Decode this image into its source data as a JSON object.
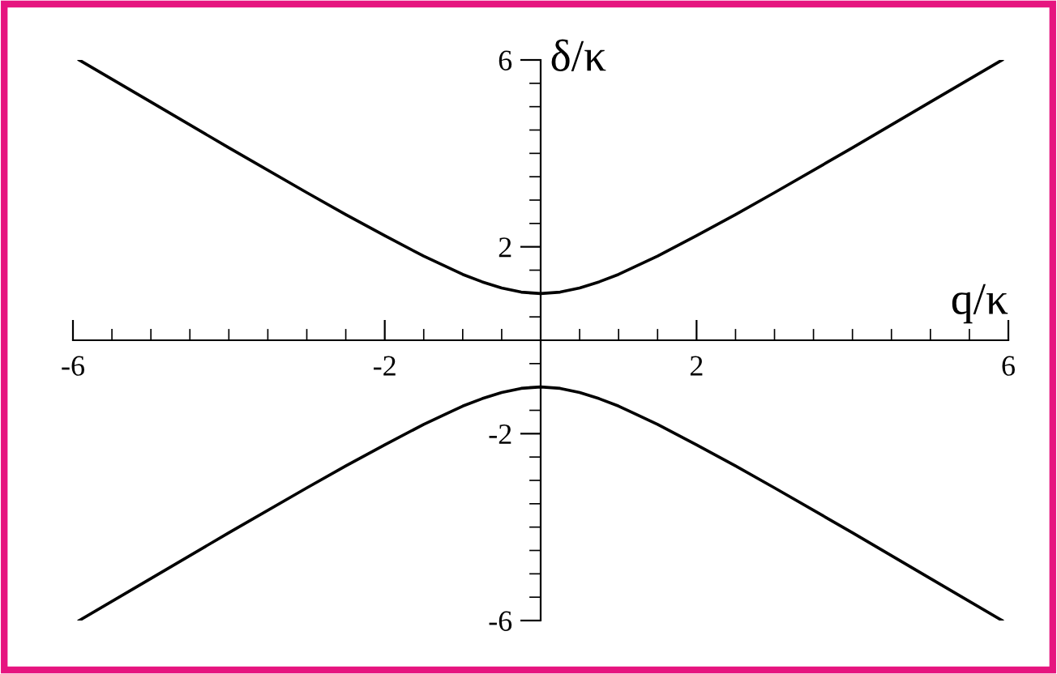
{
  "chart_data": {
    "type": "line",
    "xlabel": "q/κ",
    "ylabel": "δ/κ",
    "x": [
      -5.92,
      -5,
      -4,
      -3,
      -2.5,
      -2,
      -1.5,
      -1,
      -0.75,
      -0.5,
      -0.25,
      0,
      0.25,
      0.5,
      0.75,
      1,
      1.5,
      2,
      2.5,
      3,
      4,
      5,
      5.92
    ],
    "series": [
      {
        "color": "#000000",
        "values": [
          6.0,
          5.1,
          4.12,
          3.16,
          2.69,
          2.24,
          1.8,
          1.41,
          1.25,
          1.12,
          1.03,
          1.0,
          1.03,
          1.12,
          1.25,
          1.41,
          1.8,
          2.24,
          2.69,
          3.16,
          4.12,
          5.1,
          6.0
        ]
      },
      {
        "color": "#000000",
        "values": [
          -6.0,
          -5.1,
          -4.12,
          -3.16,
          -2.69,
          -2.24,
          -1.8,
          -1.41,
          -1.25,
          -1.12,
          -1.03,
          -1.0,
          -1.03,
          -1.12,
          -1.25,
          -1.41,
          -1.8,
          -2.24,
          -2.69,
          -3.16,
          -4.12,
          -5.1,
          -6.0
        ]
      }
    ],
    "xlim": [
      -6,
      6
    ],
    "ylim": [
      -6,
      6
    ],
    "xticks": [
      -6,
      {
        "value": -5.5,
        "label": null
      },
      {
        "value": -5,
        "label": null
      },
      {
        "value": -4.5,
        "label": null
      },
      {
        "value": -4,
        "label": null
      },
      {
        "value": -3.5,
        "label": null
      },
      {
        "value": -3,
        "label": null
      },
      {
        "value": -2.5,
        "label": null
      },
      -2,
      {
        "value": -1.5,
        "label": null
      },
      {
        "value": -1,
        "label": null
      },
      {
        "value": -0.5,
        "label": null
      },
      {
        "value": 0.5,
        "label": null
      },
      {
        "value": 1,
        "label": null
      },
      {
        "value": 1.5,
        "label": null
      },
      2,
      {
        "value": 2.5,
        "label": null
      },
      {
        "value": 3,
        "label": null
      },
      {
        "value": 3.5,
        "label": null
      },
      {
        "value": 4,
        "label": null
      },
      {
        "value": 4.5,
        "label": null
      },
      {
        "value": 5,
        "label": null
      },
      {
        "value": 5.5,
        "label": null
      },
      6
    ],
    "yticks": [
      -6,
      {
        "value": -5.5,
        "label": null
      },
      {
        "value": -5,
        "label": null
      },
      {
        "value": -4.5,
        "label": null
      },
      {
        "value": -4,
        "label": null
      },
      {
        "value": -3.5,
        "label": null
      },
      {
        "value": -3,
        "label": null
      },
      {
        "value": -2.5,
        "label": null
      },
      -2,
      {
        "value": -1.5,
        "label": null
      },
      {
        "value": -1,
        "label": null
      },
      {
        "value": -0.5,
        "label": null
      },
      {
        "value": 0.5,
        "label": null
      },
      {
        "value": 1,
        "label": null
      },
      {
        "value": 1.5,
        "label": null
      },
      2,
      {
        "value": 2.5,
        "label": null
      },
      {
        "value": 3,
        "label": null
      },
      {
        "value": 3.5,
        "label": null
      },
      {
        "value": 4,
        "label": null
      },
      {
        "value": 4.5,
        "label": null
      },
      {
        "value": 5,
        "label": null
      },
      {
        "value": 5.5,
        "label": null
      },
      6
    ],
    "grid": false,
    "legend": false,
    "marker": "none",
    "line_style": "solid"
  }
}
